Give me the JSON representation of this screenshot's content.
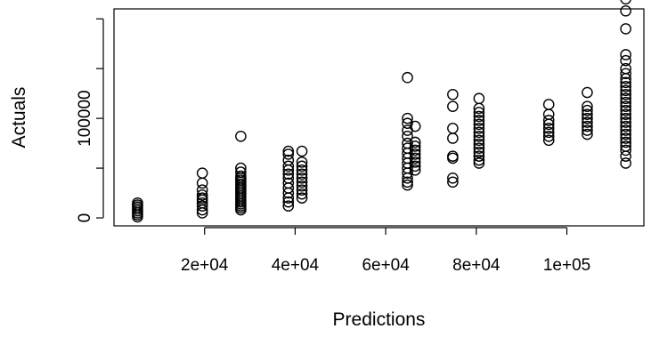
{
  "chart_data": {
    "type": "scatter",
    "title": "",
    "xlabel": "Predictions",
    "ylabel": "Actuals",
    "xlim": [
      0,
      117000
    ],
    "ylim": [
      -8000,
      210000
    ],
    "grid": false,
    "x_ticks": [
      {
        "value": 20000,
        "label": "2e+04"
      },
      {
        "value": 40000,
        "label": "4e+04"
      },
      {
        "value": 60000,
        "label": "6e+04"
      },
      {
        "value": 80000,
        "label": "8e+04"
      },
      {
        "value": 100000,
        "label": "1e+05"
      }
    ],
    "y_ticks": [
      {
        "value": 0,
        "label": "0"
      },
      {
        "value": 50000,
        "label": ""
      },
      {
        "value": 100000,
        "label": "100000"
      },
      {
        "value": 150000,
        "label": ""
      },
      {
        "value": 200000,
        "label": ""
      }
    ],
    "series": [
      {
        "points": [
          [
            5200,
            1000
          ],
          [
            5200,
            3000
          ],
          [
            5200,
            5000
          ],
          [
            5200,
            7000
          ],
          [
            5200,
            9000
          ],
          [
            5200,
            11000
          ],
          [
            5200,
            13000
          ],
          [
            5200,
            15000
          ],
          [
            19500,
            5000
          ],
          [
            19500,
            8000
          ],
          [
            19500,
            12000
          ],
          [
            19500,
            15000
          ],
          [
            19500,
            18000
          ],
          [
            19500,
            20000
          ],
          [
            19500,
            23000
          ],
          [
            19500,
            28000
          ],
          [
            19500,
            35000
          ],
          [
            19500,
            45000
          ],
          [
            28000,
            8000
          ],
          [
            28000,
            10000
          ],
          [
            28000,
            12000
          ],
          [
            28000,
            14000
          ],
          [
            28000,
            16000
          ],
          [
            28000,
            18000
          ],
          [
            28000,
            20000
          ],
          [
            28000,
            22000
          ],
          [
            28000,
            24000
          ],
          [
            28000,
            26000
          ],
          [
            28000,
            28000
          ],
          [
            28000,
            30000
          ],
          [
            28000,
            32000
          ],
          [
            28000,
            34000
          ],
          [
            28000,
            36000
          ],
          [
            28000,
            38000
          ],
          [
            28000,
            40000
          ],
          [
            28000,
            42000
          ],
          [
            28000,
            46000
          ],
          [
            28000,
            50000
          ],
          [
            28000,
            82000
          ],
          [
            38500,
            12000
          ],
          [
            38500,
            16000
          ],
          [
            38500,
            20000
          ],
          [
            38500,
            25000
          ],
          [
            38500,
            30000
          ],
          [
            38500,
            35000
          ],
          [
            38500,
            40000
          ],
          [
            38500,
            44000
          ],
          [
            38500,
            48000
          ],
          [
            38500,
            52000
          ],
          [
            38500,
            58000
          ],
          [
            38500,
            64000
          ],
          [
            38500,
            67000
          ],
          [
            41500,
            20000
          ],
          [
            41500,
            24000
          ],
          [
            41500,
            28000
          ],
          [
            41500,
            32000
          ],
          [
            41500,
            36000
          ],
          [
            41500,
            40000
          ],
          [
            41500,
            44000
          ],
          [
            41500,
            48000
          ],
          [
            41500,
            52000
          ],
          [
            41500,
            56000
          ],
          [
            41500,
            67000
          ],
          [
            64800,
            33000
          ],
          [
            64800,
            36000
          ],
          [
            64800,
            40000
          ],
          [
            64800,
            45000
          ],
          [
            64800,
            50000
          ],
          [
            64800,
            55000
          ],
          [
            64800,
            60000
          ],
          [
            64800,
            65000
          ],
          [
            64800,
            70000
          ],
          [
            64800,
            75000
          ],
          [
            64800,
            82000
          ],
          [
            64800,
            88000
          ],
          [
            64800,
            95000
          ],
          [
            64800,
            100000
          ],
          [
            64800,
            141000
          ],
          [
            66500,
            48000
          ],
          [
            66500,
            52000
          ],
          [
            66500,
            56000
          ],
          [
            66500,
            60000
          ],
          [
            66500,
            64000
          ],
          [
            66500,
            68000
          ],
          [
            66500,
            72000
          ],
          [
            66500,
            76000
          ],
          [
            66500,
            92000
          ],
          [
            74800,
            36000
          ],
          [
            74800,
            40000
          ],
          [
            74800,
            60000
          ],
          [
            74800,
            62000
          ],
          [
            74800,
            80000
          ],
          [
            74800,
            90000
          ],
          [
            74800,
            112000
          ],
          [
            74800,
            124000
          ],
          [
            80600,
            55000
          ],
          [
            80600,
            58000
          ],
          [
            80600,
            62000
          ],
          [
            80600,
            66000
          ],
          [
            80600,
            70000
          ],
          [
            80600,
            74000
          ],
          [
            80600,
            78000
          ],
          [
            80600,
            82000
          ],
          [
            80600,
            86000
          ],
          [
            80600,
            90000
          ],
          [
            80600,
            94000
          ],
          [
            80600,
            98000
          ],
          [
            80600,
            102000
          ],
          [
            80600,
            106000
          ],
          [
            80600,
            110000
          ],
          [
            80600,
            120000
          ],
          [
            96000,
            78000
          ],
          [
            96000,
            82000
          ],
          [
            96000,
            86000
          ],
          [
            96000,
            90000
          ],
          [
            96000,
            94000
          ],
          [
            96000,
            98000
          ],
          [
            96000,
            104000
          ],
          [
            96000,
            114000
          ],
          [
            104500,
            84000
          ],
          [
            104500,
            88000
          ],
          [
            104500,
            92000
          ],
          [
            104500,
            96000
          ],
          [
            104500,
            100000
          ],
          [
            104500,
            104000
          ],
          [
            104500,
            108000
          ],
          [
            104500,
            112000
          ],
          [
            104500,
            126000
          ],
          [
            113000,
            55000
          ],
          [
            113000,
            62000
          ],
          [
            113000,
            68000
          ],
          [
            113000,
            72000
          ],
          [
            113000,
            76000
          ],
          [
            113000,
            80000
          ],
          [
            113000,
            84000
          ],
          [
            113000,
            88000
          ],
          [
            113000,
            92000
          ],
          [
            113000,
            96000
          ],
          [
            113000,
            100000
          ],
          [
            113000,
            104000
          ],
          [
            113000,
            108000
          ],
          [
            113000,
            112000
          ],
          [
            113000,
            116000
          ],
          [
            113000,
            120000
          ],
          [
            113000,
            124000
          ],
          [
            113000,
            128000
          ],
          [
            113000,
            132000
          ],
          [
            113000,
            136000
          ],
          [
            113000,
            140000
          ],
          [
            113000,
            145000
          ],
          [
            113000,
            150000
          ],
          [
            113000,
            158000
          ],
          [
            113000,
            164000
          ],
          [
            113000,
            190000
          ],
          [
            113000,
            208000
          ],
          [
            113000,
            220000
          ]
        ]
      }
    ]
  }
}
